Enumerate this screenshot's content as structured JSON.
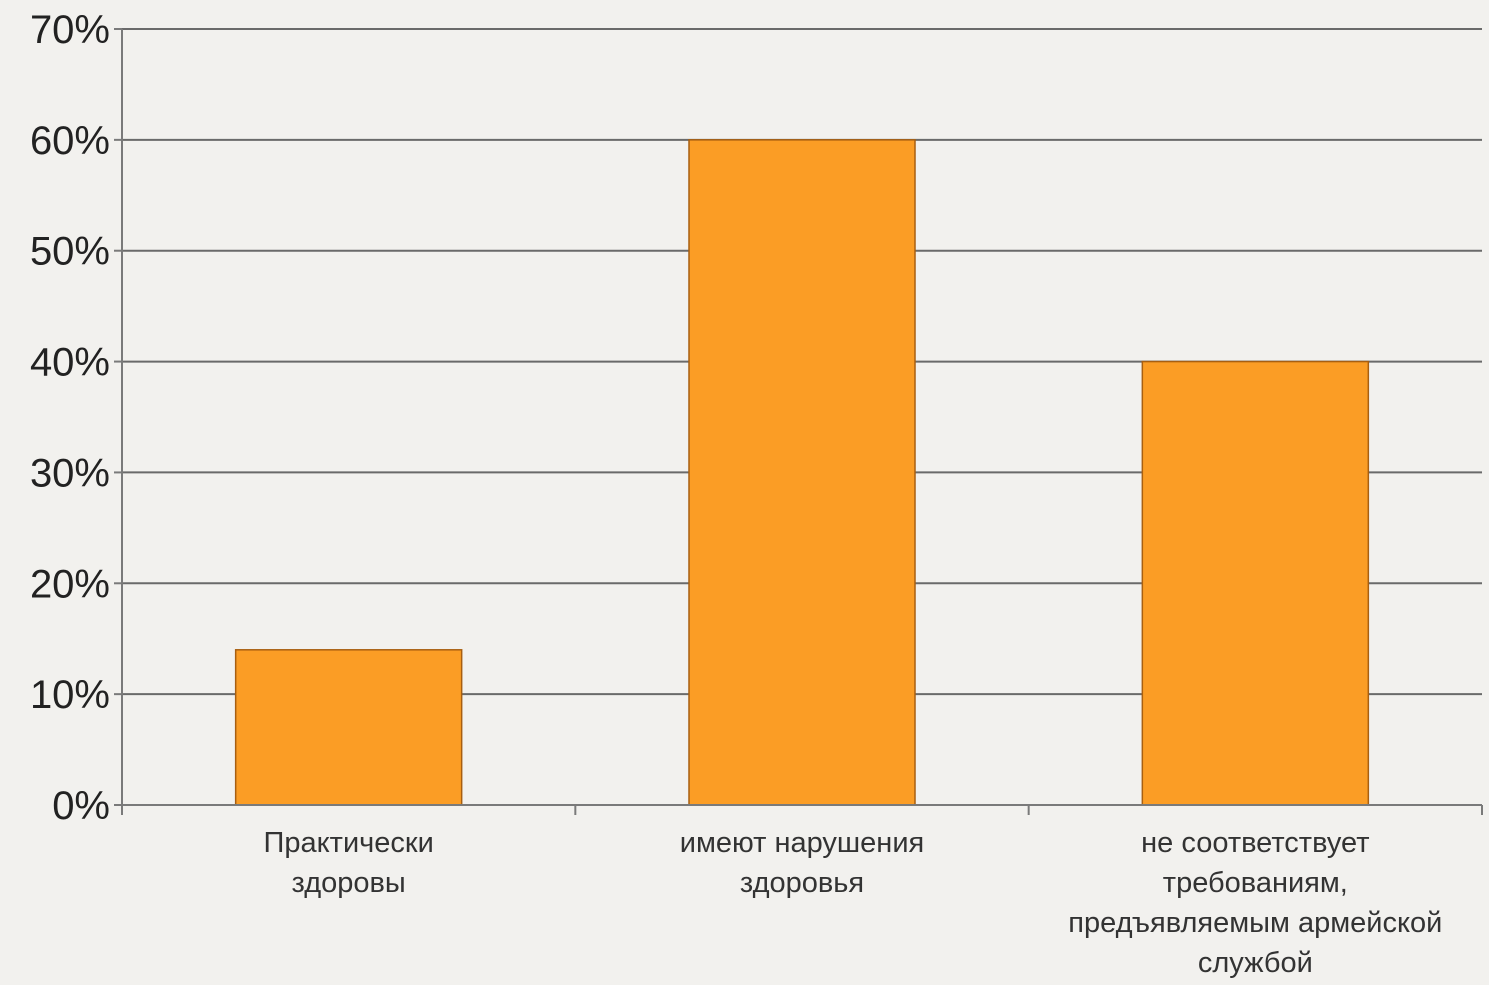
{
  "chart_data": {
    "type": "bar",
    "title": "",
    "xlabel": "",
    "ylabel": "",
    "categories": [
      [
        "Практически",
        "здоровы"
      ],
      [
        "имеют нарушения",
        "здоровья"
      ],
      [
        "не соответствует",
        "требованиям,",
        "предъявляемым армейской",
        "службой"
      ]
    ],
    "values": [
      14,
      60,
      40
    ],
    "y_ticks": [
      "0%",
      "10%",
      "20%",
      "30%",
      "40%",
      "50%",
      "60%",
      "70%"
    ],
    "ylim": [
      0,
      70
    ],
    "grid": true,
    "legend": "none",
    "colors": {
      "bar": "#fb9d25",
      "bar_edge": "#a85f10",
      "grid": "#6a6a6a",
      "axis": "#7a7a7a",
      "background": "#f2f1ee"
    }
  }
}
